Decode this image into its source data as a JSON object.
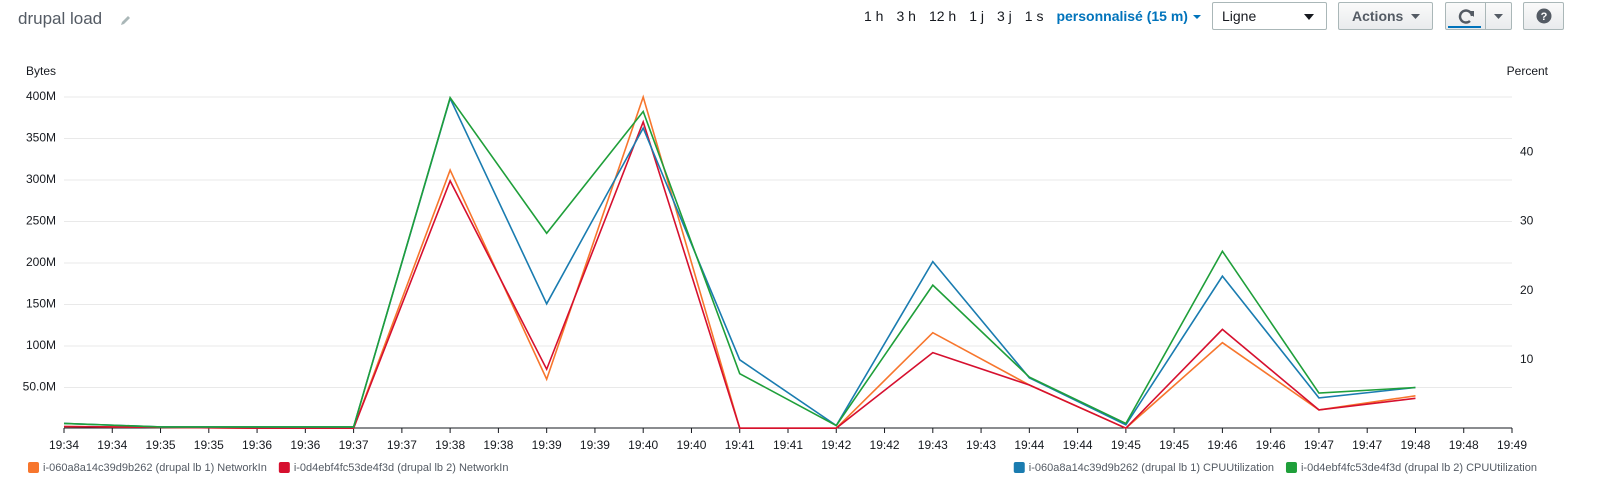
{
  "header": {
    "title": "drupal load",
    "time_ranges": [
      "1 h",
      "3 h",
      "12 h",
      "1 j",
      "3 j",
      "1 s"
    ],
    "custom_range": "personnalisé (15 m)",
    "view_select": "Ligne",
    "actions": "Actions",
    "help": "?"
  },
  "chart_data": {
    "type": "line",
    "ylabel": "Bytes",
    "y2label": "Percent",
    "x": [
      1174,
      1175,
      1176,
      1177,
      1178,
      1179,
      1180,
      1181,
      1182,
      1183,
      1184,
      1185,
      1186,
      1187,
      1188
    ],
    "xlim": [
      1174,
      1189
    ],
    "xticks": [
      {
        "value": 1174,
        "label": "19:34"
      },
      {
        "value": 1174.5,
        "label": "19:34"
      },
      {
        "value": 1175,
        "label": "19:35"
      },
      {
        "value": 1175.5,
        "label": "19:35"
      },
      {
        "value": 1176,
        "label": "19:36"
      },
      {
        "value": 1176.5,
        "label": "19:36"
      },
      {
        "value": 1177,
        "label": "19:37"
      },
      {
        "value": 1177.5,
        "label": "19:37"
      },
      {
        "value": 1178,
        "label": "19:38"
      },
      {
        "value": 1178.5,
        "label": "19:38"
      },
      {
        "value": 1179,
        "label": "19:39"
      },
      {
        "value": 1179.5,
        "label": "19:39"
      },
      {
        "value": 1180,
        "label": "19:40"
      },
      {
        "value": 1180.5,
        "label": "19:40"
      },
      {
        "value": 1181,
        "label": "19:41"
      },
      {
        "value": 1181.5,
        "label": "19:41"
      },
      {
        "value": 1182,
        "label": "19:42"
      },
      {
        "value": 1182.5,
        "label": "19:42"
      },
      {
        "value": 1183,
        "label": "19:43"
      },
      {
        "value": 1183.5,
        "label": "19:43"
      },
      {
        "value": 1184,
        "label": "19:44"
      },
      {
        "value": 1184.5,
        "label": "19:44"
      },
      {
        "value": 1185,
        "label": "19:45"
      },
      {
        "value": 1185.5,
        "label": "19:45"
      },
      {
        "value": 1186,
        "label": "19:46"
      },
      {
        "value": 1186.5,
        "label": "19:46"
      },
      {
        "value": 1187,
        "label": "19:47"
      },
      {
        "value": 1187.5,
        "label": "19:47"
      },
      {
        "value": 1188,
        "label": "19:48"
      },
      {
        "value": 1188.5,
        "label": "19:48"
      },
      {
        "value": 1189,
        "label": "19:49"
      }
    ],
    "ylim": [
      0,
      400000000
    ],
    "yticks": [
      {
        "value": 50000000,
        "label": "50.0M"
      },
      {
        "value": 100000000,
        "label": "100M"
      },
      {
        "value": 150000000,
        "label": "150M"
      },
      {
        "value": 200000000,
        "label": "200M"
      },
      {
        "value": 250000000,
        "label": "250M"
      },
      {
        "value": 300000000,
        "label": "300M"
      },
      {
        "value": 350000000,
        "label": "350M"
      },
      {
        "value": 400000000,
        "label": "400M"
      }
    ],
    "y2lim": [
      0,
      48
    ],
    "y2ticks": [
      10,
      20,
      30,
      40
    ],
    "grid": true,
    "series": [
      {
        "name": "i-060a8a14c39d9b262 (drupal lb 1) NetworkIn",
        "color": "#f7762d",
        "values": [
          3000000,
          2000000,
          1000000,
          1000000,
          312000000,
          60000000,
          400000000,
          1000000,
          1000000,
          116000000,
          53000000,
          1000000,
          104000000,
          23000000,
          40000000
        ]
      },
      {
        "name": "i-0d4ebf4fc53de4f3d (drupal lb 2) NetworkIn",
        "color": "#d6102f",
        "values": [
          3000000,
          2000000,
          1000000,
          1000000,
          299000000,
          72000000,
          370000000,
          1000000,
          1000000,
          92000000,
          53000000,
          1000000,
          120000000,
          23000000,
          37000000
        ]
      },
      {
        "name": "i-060a8a14c39d9b262 (drupal lb 1) CPUUtilization",
        "color": "#1a7cb0",
        "axis": "y2",
        "values": [
          0.8,
          0.3,
          0.3,
          0.3,
          47.8,
          18.1,
          43.5,
          10,
          0.5,
          24.2,
          7.4,
          0.6,
          22.1,
          4.5,
          6
        ]
      },
      {
        "name": "i-0d4ebf4fc53de4f3d (drupal lb 2) CPUUtilization",
        "color": "#1f9f3a",
        "axis": "y2",
        "values": [
          0.8,
          0.3,
          0.3,
          0.3,
          47.9,
          28.3,
          45.9,
          8,
          0.5,
          20.8,
          7.5,
          0.8,
          25.7,
          5.2,
          6
        ]
      }
    ]
  }
}
